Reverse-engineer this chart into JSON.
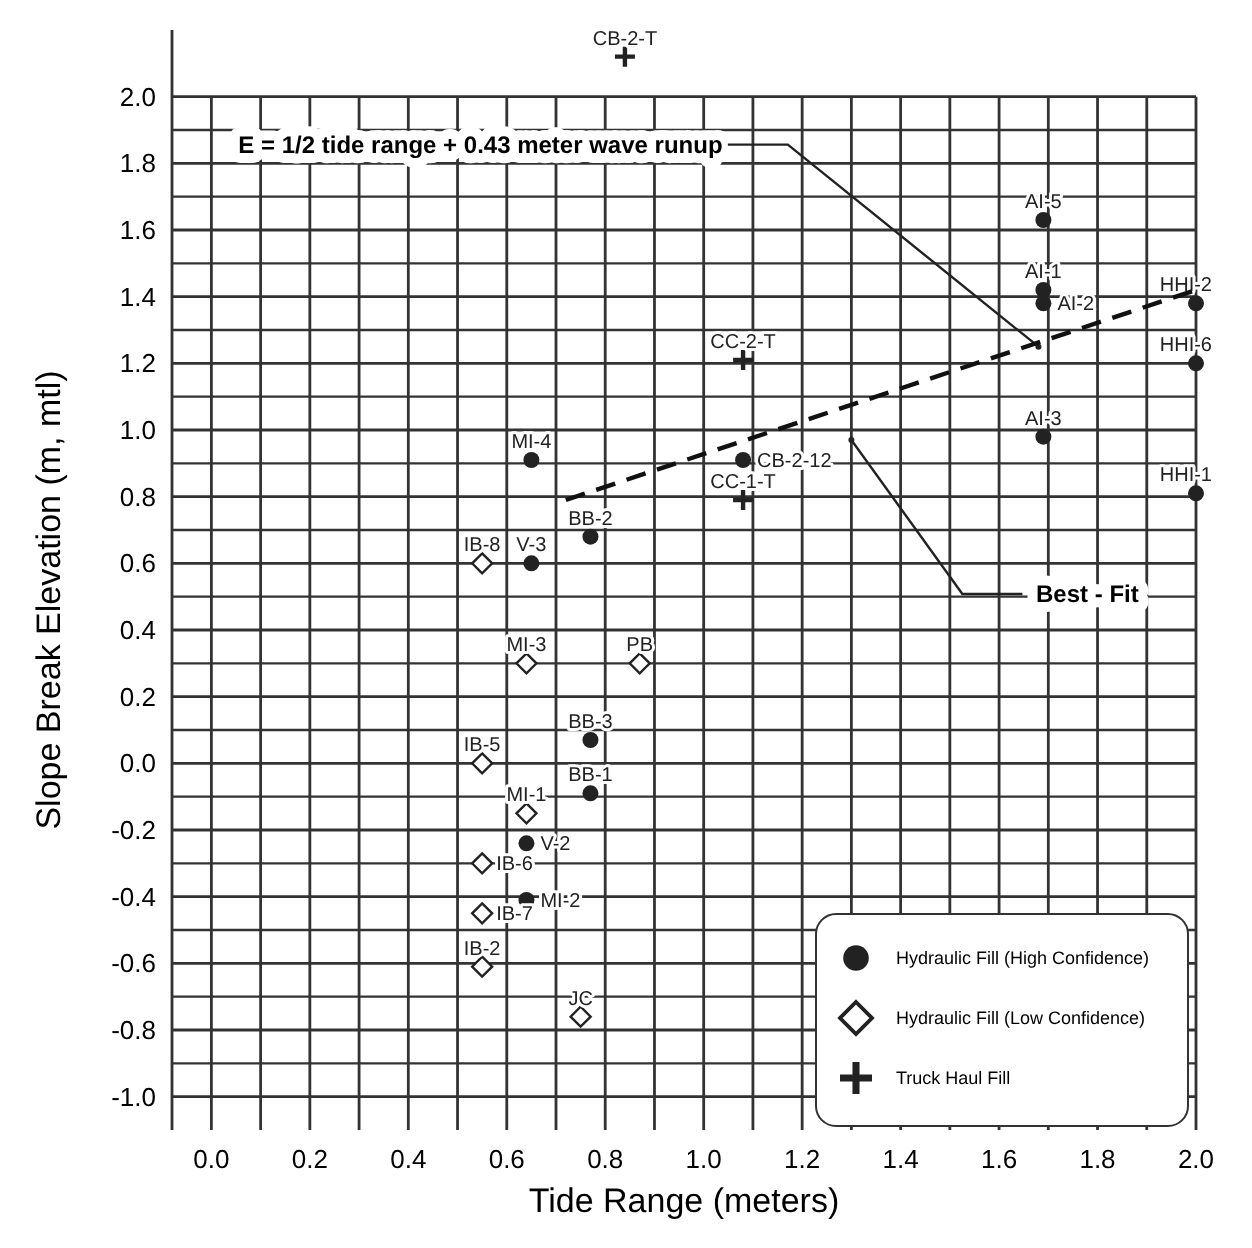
{
  "chart_data": {
    "type": "scatter",
    "xlabel": "Tide Range (meters)",
    "ylabel": "Slope Break Elevation (m, mtl)",
    "xlim": [
      -0.08,
      2.0
    ],
    "ylim": [
      -1.1,
      2.2
    ],
    "xticks": [
      {
        "value": 0,
        "label": "0.0"
      },
      {
        "value": 0.1,
        "label": null
      },
      {
        "value": 0.2,
        "label": "0.2"
      },
      {
        "value": 0.3,
        "label": null
      },
      {
        "value": 0.4,
        "label": "0.4"
      },
      {
        "value": 0.5,
        "label": null
      },
      {
        "value": 0.6,
        "label": "0.6"
      },
      {
        "value": 0.7,
        "label": null
      },
      {
        "value": 0.8,
        "label": "0.8"
      },
      {
        "value": 0.9,
        "label": null
      },
      {
        "value": 1.0,
        "label": "1.0"
      },
      {
        "value": 1.1,
        "label": null
      },
      {
        "value": 1.2,
        "label": "1.2"
      },
      {
        "value": 1.3,
        "label": null
      },
      {
        "value": 1.4,
        "label": "1.4"
      },
      {
        "value": 1.5,
        "label": null
      },
      {
        "value": 1.6,
        "label": "1.6"
      },
      {
        "value": 1.7,
        "label": null
      },
      {
        "value": 1.8,
        "label": "1.8"
      },
      {
        "value": 1.9,
        "label": null
      },
      {
        "value": 2.0,
        "label": "2.0"
      }
    ],
    "yticks": [
      {
        "value": -1.0,
        "label": "-1.0"
      },
      {
        "value": -0.9,
        "label": null
      },
      {
        "value": -0.8,
        "label": "-0.8"
      },
      {
        "value": -0.7,
        "label": null
      },
      {
        "value": -0.6,
        "label": "-0.6"
      },
      {
        "value": -0.5,
        "label": null
      },
      {
        "value": -0.4,
        "label": "-0.4"
      },
      {
        "value": -0.3,
        "label": null
      },
      {
        "value": -0.2,
        "label": "-0.2"
      },
      {
        "value": -0.1,
        "label": null
      },
      {
        "value": 0,
        "label": "0.0"
      },
      {
        "value": 0.1,
        "label": null
      },
      {
        "value": 0.2,
        "label": "0.2"
      },
      {
        "value": 0.3,
        "label": null
      },
      {
        "value": 0.4,
        "label": "0.4"
      },
      {
        "value": 0.5,
        "label": null
      },
      {
        "value": 0.6,
        "label": "0.6"
      },
      {
        "value": 0.7,
        "label": null
      },
      {
        "value": 0.8,
        "label": "0.8"
      },
      {
        "value": 0.9,
        "label": null
      },
      {
        "value": 1.0,
        "label": "1.0"
      },
      {
        "value": 1.1,
        "label": null
      },
      {
        "value": 1.2,
        "label": "1.2"
      },
      {
        "value": 1.3,
        "label": null
      },
      {
        "value": 1.4,
        "label": "1.4"
      },
      {
        "value": 1.5,
        "label": null
      },
      {
        "value": 1.6,
        "label": "1.6"
      },
      {
        "value": 1.7,
        "label": null
      },
      {
        "value": 1.8,
        "label": "1.8"
      },
      {
        "value": 1.9,
        "label": null
      },
      {
        "value": 2.0,
        "label": "2.0"
      }
    ],
    "grid": true,
    "legend": "bottom right",
    "series": [
      {
        "name": "Hydraulic Fill (High Confidence)",
        "color": "#222222",
        "marker": "circle",
        "x": [
          1.69,
          1.69,
          1.69,
          1.69,
          2.0,
          2.0,
          2.0,
          0.65,
          0.65,
          0.77,
          1.08,
          0.77,
          0.77,
          0.64,
          0.64
        ],
        "values": [
          1.63,
          1.42,
          1.38,
          0.98,
          1.38,
          1.2,
          0.81,
          0.91,
          0.6,
          0.68,
          0.91,
          0.07,
          -0.09,
          -0.24,
          -0.41
        ],
        "value_labels": [
          "AI-5",
          "AI-1",
          "AI-2",
          "AI-3",
          "HHI-2",
          "HHI-6",
          "HHI-1",
          "MI-4",
          "V-3",
          "BB-2",
          "CB-2-12",
          "BB-3",
          "BB-1",
          "V-2",
          "MI-2"
        ]
      },
      {
        "name": "Hydraulic Fill (Low Confidence)",
        "color": "#222222",
        "marker": "diamond",
        "x": [
          0.55,
          0.64,
          0.87,
          0.55,
          0.64,
          0.55,
          0.55,
          0.55,
          0.75
        ],
        "values": [
          0.6,
          0.3,
          0.3,
          0.0,
          -0.15,
          -0.3,
          -0.45,
          -0.61,
          -0.76
        ],
        "value_labels": [
          "IB-8",
          "MI-3",
          "PB",
          "IB-5",
          "MI-1",
          "IB-6",
          "IB-7",
          "IB-2",
          "JC"
        ]
      },
      {
        "name": "Truck Haul Fill",
        "color": "#222222",
        "marker": "cross",
        "x": [
          0.84,
          1.08,
          1.08
        ],
        "values": [
          2.12,
          1.21,
          0.79
        ],
        "value_labels": [
          "CB-2-T",
          "CC-2-T",
          "CC-1-T"
        ]
      },
      {
        "type": "line",
        "color": "#111111",
        "line_style": "dashed",
        "x": [
          0.72,
          2.0
        ],
        "values": [
          0.79,
          1.42
        ]
      }
    ],
    "annotations": [
      {
        "text": "E = 1/2 tide range + 0.43 meter wave runup",
        "x": 1.68,
        "y": 1.25
      },
      {
        "text": "Best - Fit",
        "x": 1.3,
        "y": 0.97
      }
    ]
  }
}
